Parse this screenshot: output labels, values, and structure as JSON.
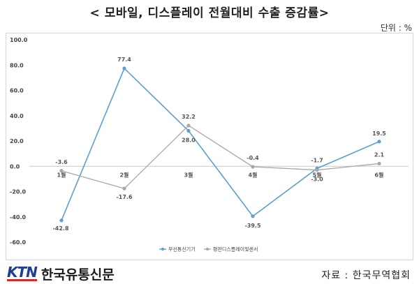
{
  "header": {
    "title": "< 모바일, 디스플레이 전월대비 수출 증감률>",
    "unit": "단위 : %"
  },
  "footer": {
    "logo_mark": "KTN",
    "logo_name": "한국유통신문",
    "source": "자료 : 한국무역협회"
  },
  "chart_data": {
    "type": "line",
    "categories": [
      "1월",
      "2월",
      "3월",
      "4월",
      "5월",
      "6월"
    ],
    "ylim": [
      -60,
      100
    ],
    "yticks": [
      "100.0",
      "80.0",
      "60.0",
      "40.0",
      "20.0",
      "0.0",
      "-20.0",
      "-40.0",
      "-60.0"
    ],
    "grid": false,
    "legend_position": "bottom",
    "series": [
      {
        "name": "무선통신기기",
        "color": "#5a9fd4",
        "values": [
          -42.8,
          77.4,
          28.0,
          -39.5,
          -1.7,
          19.5
        ],
        "labels": [
          "-42.8",
          "77.4",
          "28.0",
          "-39.5",
          "-1.7",
          "19.5"
        ]
      },
      {
        "name": "평판디스플레이및센서",
        "color": "#a8a8a8",
        "values": [
          -3.6,
          -17.6,
          32.2,
          -0.4,
          -3.0,
          2.1
        ],
        "labels": [
          "-3.6",
          "-17.6",
          "32.2",
          "-0.4",
          "-3.0",
          "2.1"
        ]
      }
    ]
  }
}
